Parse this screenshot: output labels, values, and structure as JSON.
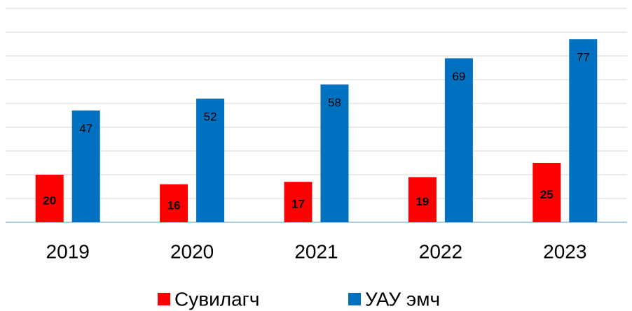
{
  "chart_data": {
    "type": "bar",
    "categories": [
      "2019",
      "2020",
      "2021",
      "2022",
      "2023"
    ],
    "series": [
      {
        "name": "Сувилагч",
        "color": "#ff0000",
        "values": [
          20,
          16,
          17,
          19,
          25
        ]
      },
      {
        "name": "УАУ эмч",
        "color": "#0070c0",
        "values": [
          47,
          52,
          58,
          69,
          77
        ]
      }
    ],
    "ylim": [
      0,
      90
    ],
    "yticks": [
      0,
      10,
      20,
      30,
      40,
      50,
      60,
      70,
      80,
      90
    ],
    "grid": true,
    "legend": "bottom"
  }
}
